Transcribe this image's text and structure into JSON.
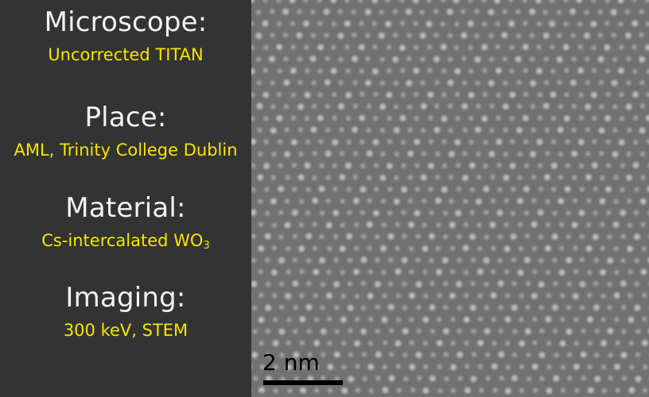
{
  "info": {
    "microscope": {
      "label": "Microscope:",
      "value": "Uncorrected TITAN"
    },
    "place": {
      "label": "Place:",
      "value": "AML, Trinity College Dublin"
    },
    "material": {
      "label": "Material:",
      "value_main": "Cs-intercalated WO",
      "value_sub": "3"
    },
    "imaging": {
      "label": "Imaging:",
      "value": "300 keV, STEM"
    }
  },
  "scale_bar": {
    "label": "2 nm"
  },
  "colors": {
    "panel_background": "#333333",
    "heading_text": "#f2f2f2",
    "value_text": "#f4e600",
    "scale_bar": "#000000"
  }
}
